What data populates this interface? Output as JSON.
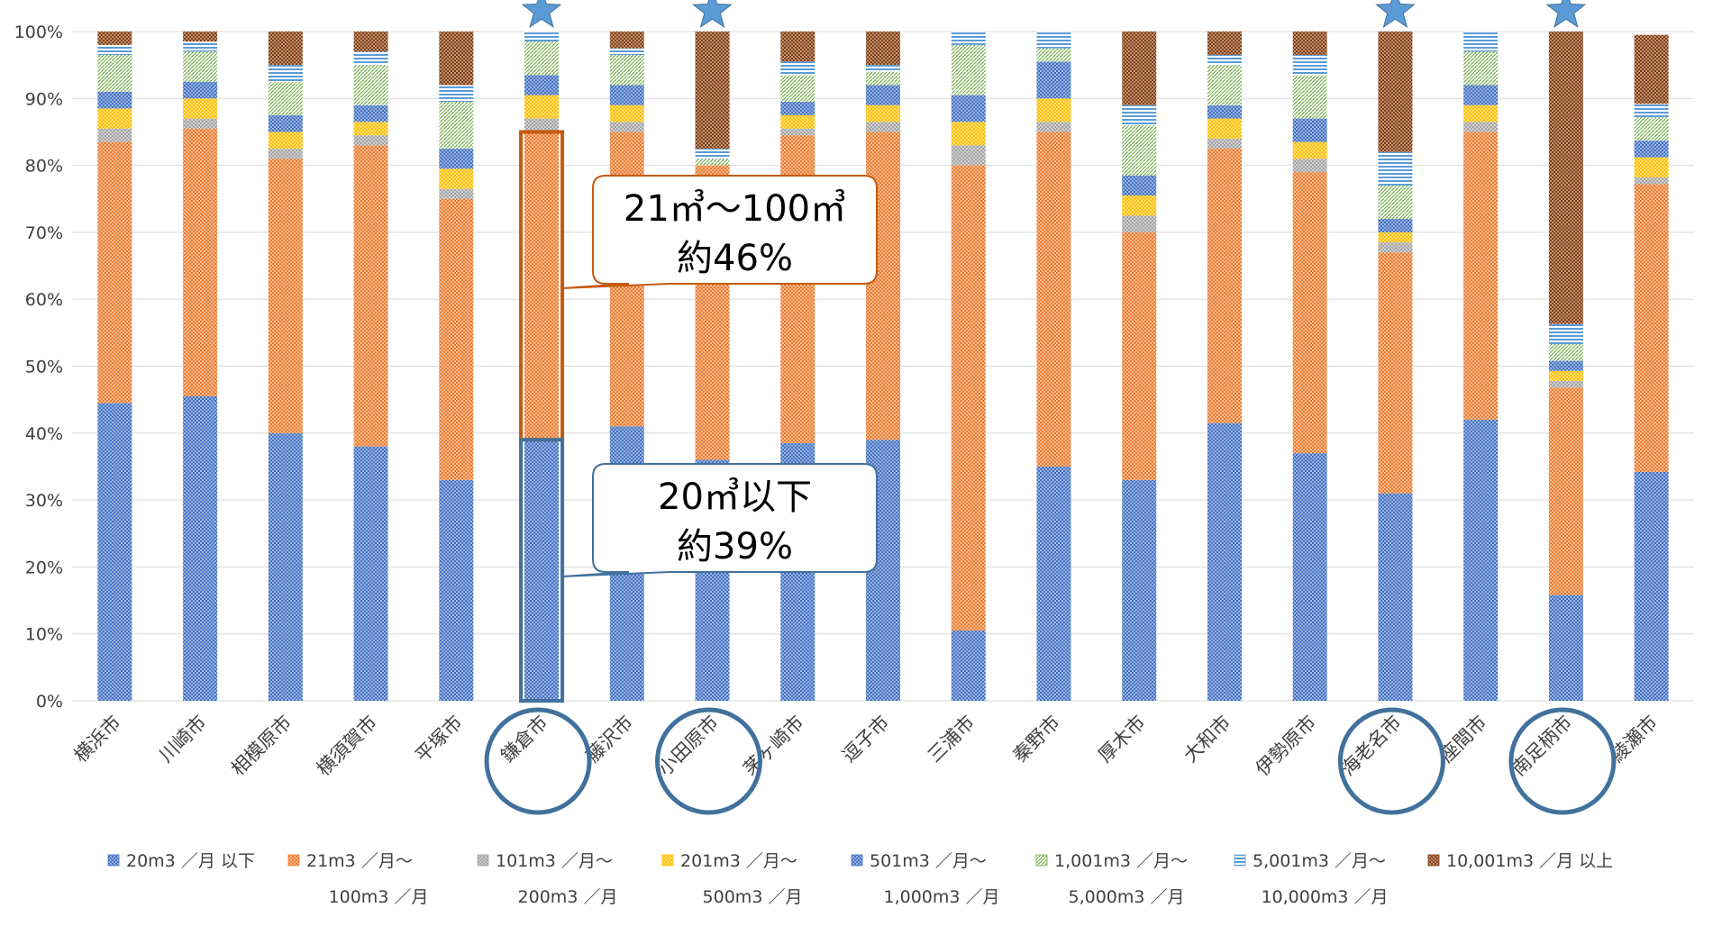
{
  "chart_data": {
    "type": "bar",
    "stacked": true,
    "percent": true,
    "title": "",
    "xlabel": "",
    "ylabel": "",
    "ylim": [
      0,
      100
    ],
    "y_ticks": [
      "0%",
      "10%",
      "20%",
      "30%",
      "40%",
      "50%",
      "60%",
      "70%",
      "80%",
      "90%",
      "100%"
    ],
    "grid": true,
    "legend_position": "bottom",
    "categories": [
      "横浜市",
      "川崎市",
      "相模原市",
      "横須賀市",
      "平塚市",
      "鎌倉市",
      "藤沢市",
      "小田原市",
      "茅ヶ崎市",
      "逗子市",
      "三浦市",
      "秦野市",
      "厚木市",
      "大和市",
      "伊勢原市",
      "海老名市",
      "座間市",
      "南足柄市",
      "綾瀬市"
    ],
    "highlighted_categories": [
      "鎌倉市",
      "小田原市",
      "海老名市",
      "南足柄市"
    ],
    "series": [
      {
        "name": "20m3 ／月 以下",
        "color": "#4472C4",
        "values": [
          44.5,
          45.5,
          40.0,
          38.0,
          33.0,
          39.0,
          41.0,
          36.0,
          38.5,
          39.0,
          10.5,
          35.0,
          33.0,
          41.5,
          37.0,
          31.0,
          42.0,
          15.8,
          34.2
        ]
      },
      {
        "name": "21m3 ／月～ 100m3 ／月",
        "color": "#ED7D31",
        "values": [
          39.0,
          40.0,
          41.0,
          45.0,
          42.0,
          46.0,
          44.0,
          44.0,
          46.0,
          46.0,
          69.5,
          50.0,
          37.0,
          41.0,
          42.0,
          36.0,
          43.0,
          31.0,
          43.0
        ]
      },
      {
        "name": "101m3 ／月～ 200m3 ／月",
        "color": "#A5A5A5",
        "values": [
          2.0,
          1.5,
          1.5,
          1.5,
          1.5,
          2.0,
          1.5,
          0.0,
          1.0,
          1.5,
          3.0,
          1.5,
          2.5,
          1.5,
          2.0,
          1.5,
          1.5,
          1.0,
          1.0
        ]
      },
      {
        "name": "201m3 ／月～ 500m3 ／月",
        "color": "#FFC000",
        "values": [
          3.0,
          3.0,
          2.5,
          2.0,
          3.0,
          3.5,
          2.5,
          0.0,
          2.0,
          2.5,
          3.5,
          3.5,
          3.0,
          3.0,
          2.5,
          1.5,
          2.5,
          1.5,
          3.0
        ]
      },
      {
        "name": "501m3 ／月～ 1,000m3 ／月",
        "color": "#4472C4",
        "values": [
          2.5,
          2.5,
          2.5,
          2.5,
          3.0,
          3.0,
          3.0,
          0.0,
          2.0,
          3.0,
          4.0,
          5.5,
          3.0,
          2.0,
          3.5,
          2.0,
          3.0,
          1.5,
          2.5
        ]
      },
      {
        "name": "1,001m3 ／月～ 5,000m3 ／月",
        "color": "#70AD47",
        "values": [
          5.5,
          4.5,
          5.0,
          6.0,
          7.0,
          5.0,
          4.5,
          1.0,
          4.0,
          2.0,
          7.5,
          2.0,
          7.5,
          6.0,
          6.5,
          5.0,
          5.0,
          2.5,
          3.5
        ]
      },
      {
        "name": "5,001m3 ／月～ 10,000m3 ／月",
        "color": "#5B9BD5",
        "values": [
          1.5,
          1.5,
          2.5,
          2.0,
          2.5,
          1.5,
          1.0,
          1.5,
          2.0,
          1.0,
          2.0,
          2.5,
          3.0,
          1.5,
          3.0,
          5.0,
          3.0,
          3.0,
          2.0
        ]
      },
      {
        "name": "10,001m3 ／月 以上",
        "color": "#843C0C",
        "values": [
          2.0,
          1.5,
          5.0,
          3.0,
          8.0,
          0.0,
          2.5,
          17.5,
          4.5,
          5.0,
          0.0,
          0.0,
          11.0,
          3.5,
          3.5,
          18.0,
          0.0,
          43.7,
          10.3
        ]
      }
    ],
    "annotations": [
      {
        "category": "鎌倉市",
        "text_lines": [
          "21㎥～100㎥",
          "約46%"
        ],
        "border_color": "#C55A11"
      },
      {
        "category": "鎌倉市",
        "text_lines": [
          "20㎥以下",
          "約39%"
        ],
        "border_color": "#41719C"
      }
    ]
  },
  "legend": [
    {
      "line1": "20m3 ／月 以下",
      "line2": ""
    },
    {
      "line1": "21m3 ／月～",
      "line2": "100m3 ／月"
    },
    {
      "line1": "101m3 ／月～",
      "line2": "200m3 ／月"
    },
    {
      "line1": "201m3 ／月～",
      "line2": "500m3 ／月"
    },
    {
      "line1": "501m3 ／月～",
      "line2": "1,000m3 ／月"
    },
    {
      "line1": "1,001m3 ／月～",
      "line2": "5,000m3 ／月"
    },
    {
      "line1": "5,001m3 ／月～",
      "line2": "10,000m3 ／月"
    },
    {
      "line1": "10,001m3 ／月 以上",
      "line2": ""
    }
  ]
}
